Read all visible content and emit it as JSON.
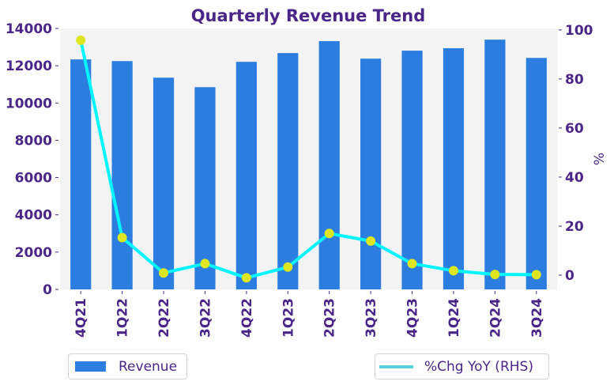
{
  "chart_data": {
    "type": "bar",
    "title": "Quarterly Revenue Trend",
    "xlabel": "",
    "ylabel": "",
    "ylabel_right": "%",
    "categories": [
      "4Q21",
      "1Q22",
      "2Q22",
      "3Q22",
      "4Q22",
      "1Q23",
      "2Q23",
      "3Q23",
      "4Q23",
      "1Q24",
      "2Q24",
      "3Q24"
    ],
    "series": [
      {
        "name": "Revenue",
        "type": "bar",
        "axis": "left",
        "color": "#2b7de0",
        "values": [
          12340,
          12250,
          11360,
          10850,
          12210,
          12680,
          13320,
          12380,
          12810,
          12940,
          13400,
          12420
        ]
      },
      {
        "name": "%Chg YoY (RHS)",
        "type": "line",
        "axis": "right",
        "color": "#00f6ff",
        "marker_color": "#dde620",
        "values": [
          95.8,
          15.3,
          0.9,
          4.7,
          -1.1,
          3.3,
          17.0,
          13.9,
          4.7,
          1.8,
          0.3,
          0.2
        ]
      }
    ],
    "ylim": [
      0,
      14000
    ],
    "ylim_right": [
      -5.8,
      100.6
    ],
    "yticks": [
      "0",
      "2000",
      "4000",
      "6000",
      "8000",
      "10000",
      "12000",
      "14000"
    ],
    "yticks_right": [
      "0",
      "20",
      "40",
      "60",
      "80",
      "100"
    ],
    "grid": false,
    "legend": [
      "bottom-left",
      "bottom-right"
    ]
  },
  "legend": {
    "revenue_label": "Revenue",
    "yoy_label": "%Chg YoY (RHS)"
  }
}
